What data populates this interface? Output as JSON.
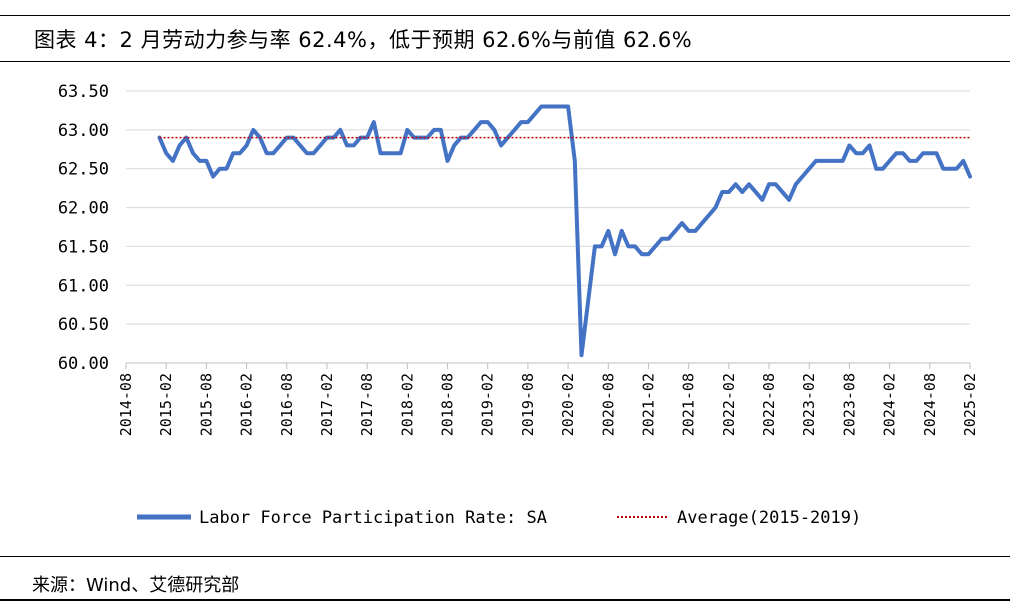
{
  "header": {
    "title": "图表 4：2 月劳动力参与率 62.4%，低于预期 62.6%与前值 62.6%"
  },
  "footer": {
    "source": "来源：Wind、艾德研究部"
  },
  "chart_data": {
    "type": "line",
    "title": "图表 4：2 月劳动力参与率 62.4%，低于预期 62.6%与前值 62.6%",
    "xlabel": "",
    "ylabel": "",
    "ylim": [
      60.0,
      63.5
    ],
    "y_ticks": [
      "63.50",
      "63.00",
      "62.50",
      "62.00",
      "61.50",
      "61.00",
      "60.50",
      "60.00"
    ],
    "x_ticks": [
      "2014-08",
      "2015-02",
      "2015-08",
      "2016-02",
      "2016-08",
      "2017-02",
      "2017-08",
      "2018-02",
      "2018-08",
      "2019-02",
      "2019-08",
      "2020-02",
      "2020-08",
      "2021-02",
      "2021-08",
      "2022-02",
      "2022-08",
      "2023-02",
      "2023-08",
      "2024-02",
      "2024-08",
      "2025-02"
    ],
    "x_start": "2015-01",
    "grid": "horizontal",
    "legend_position": "bottom",
    "series": [
      {
        "name": "Labor Force Participation Rate: SA",
        "color": "#4472C4",
        "style": "solid",
        "values": [
          62.9,
          62.7,
          62.6,
          62.8,
          62.9,
          62.7,
          62.6,
          62.6,
          62.4,
          62.5,
          62.5,
          62.7,
          62.7,
          62.8,
          63.0,
          62.9,
          62.7,
          62.7,
          62.8,
          62.9,
          62.9,
          62.8,
          62.7,
          62.7,
          62.8,
          62.9,
          62.9,
          63.0,
          62.8,
          62.8,
          62.9,
          62.9,
          63.1,
          62.7,
          62.7,
          62.7,
          62.7,
          63.0,
          62.9,
          62.9,
          62.9,
          63.0,
          63.0,
          62.6,
          62.8,
          62.9,
          62.9,
          63.0,
          63.1,
          63.1,
          63.0,
          62.8,
          62.9,
          63.0,
          63.1,
          63.1,
          63.2,
          63.3,
          63.3,
          63.3,
          63.3,
          63.3,
          62.6,
          60.1,
          60.8,
          61.5,
          61.5,
          61.7,
          61.4,
          61.7,
          61.5,
          61.5,
          61.4,
          61.4,
          61.5,
          61.6,
          61.6,
          61.7,
          61.8,
          61.7,
          61.7,
          61.8,
          61.9,
          62.0,
          62.2,
          62.2,
          62.3,
          62.2,
          62.3,
          62.2,
          62.1,
          62.3,
          62.3,
          62.2,
          62.1,
          62.3,
          62.4,
          62.5,
          62.6,
          62.6,
          62.6,
          62.6,
          62.6,
          62.8,
          62.7,
          62.7,
          62.8,
          62.5,
          62.5,
          62.6,
          62.7,
          62.7,
          62.6,
          62.6,
          62.7,
          62.7,
          62.7,
          62.5,
          62.5,
          62.5,
          62.6,
          62.4
        ]
      },
      {
        "name": "Average(2015-2019)",
        "color": "#C00000",
        "style": "dotted",
        "constant": 62.9
      }
    ]
  }
}
